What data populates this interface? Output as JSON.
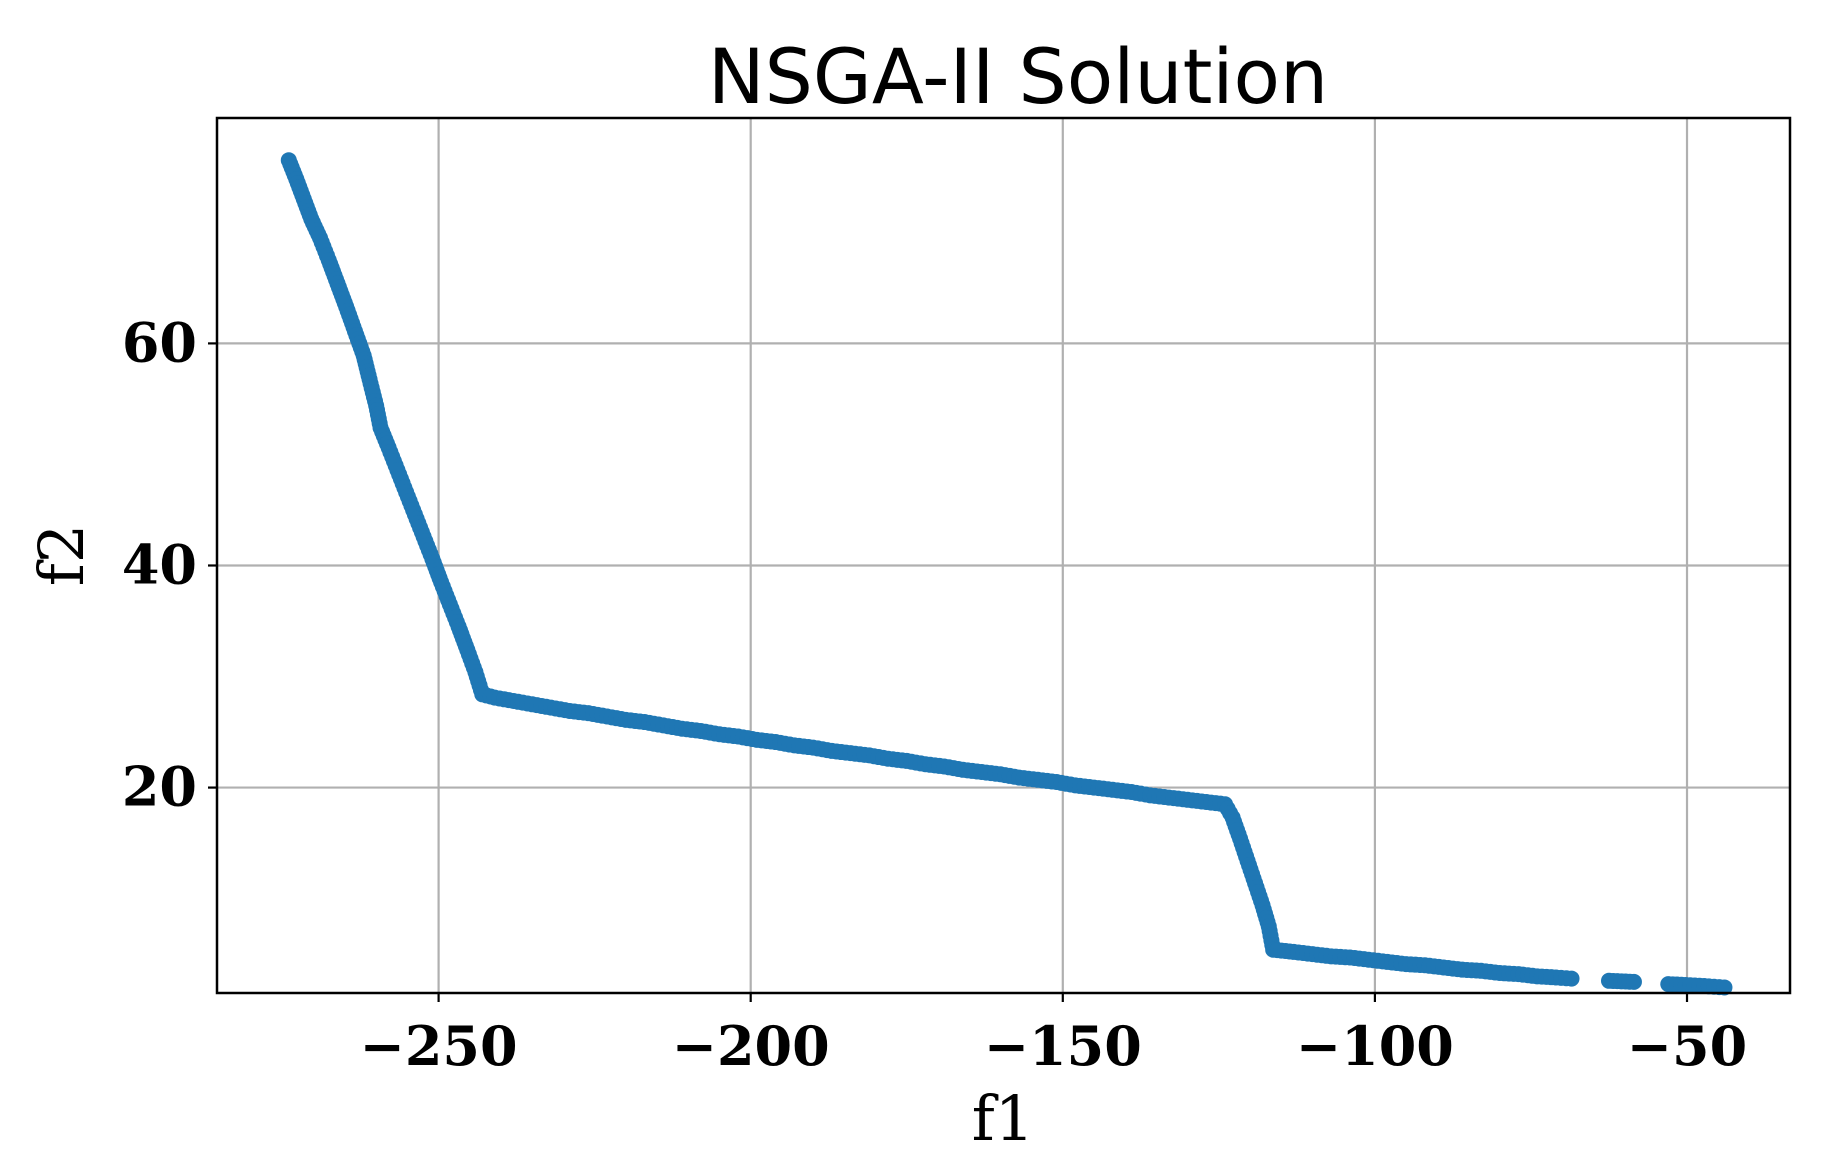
{
  "chart_data": {
    "type": "scatter",
    "title": "NSGA-II Solution",
    "xlabel": "f1",
    "ylabel": "f2",
    "xlim": [
      -285.5,
      -33.5
    ],
    "ylim": [
      1.5,
      80.3
    ],
    "xticks": [
      -250,
      -200,
      -150,
      -100,
      -50
    ],
    "xtick_labels": [
      "−250",
      "−200",
      "−150",
      "−100",
      "−50"
    ],
    "yticks": [
      20,
      40,
      60
    ],
    "ytick_labels": [
      "20",
      "40",
      "60"
    ],
    "grid": true,
    "legend": "none",
    "color": "#1f77b4",
    "series": [
      {
        "points": [
          [
            -274.0,
            76.5
          ],
          [
            -272.8,
            74.8
          ],
          [
            -271.6,
            73.0
          ],
          [
            -270.4,
            71.2
          ],
          [
            -269.0,
            69.5
          ],
          [
            -267.6,
            67.5
          ],
          [
            -266.2,
            65.4
          ],
          [
            -264.8,
            63.3
          ],
          [
            -263.4,
            61.1
          ],
          [
            -262.0,
            58.9
          ],
          [
            -260.9,
            56.4
          ],
          [
            -260.0,
            54.4
          ],
          [
            -259.3,
            52.4
          ],
          [
            -258.0,
            50.6
          ],
          [
            -256.6,
            48.6
          ],
          [
            -255.2,
            46.6
          ],
          [
            -253.8,
            44.6
          ],
          [
            -252.4,
            42.6
          ],
          [
            -251.0,
            40.6
          ],
          [
            -249.6,
            38.5
          ],
          [
            -248.2,
            36.5
          ],
          [
            -246.8,
            34.5
          ],
          [
            -245.4,
            32.4
          ],
          [
            -244.1,
            30.4
          ],
          [
            -243.0,
            28.4
          ],
          [
            -241.0,
            28.1
          ],
          [
            -238.0,
            27.8
          ],
          [
            -235.0,
            27.5
          ],
          [
            -232.0,
            27.2
          ],
          [
            -229.0,
            26.9
          ],
          [
            -226.0,
            26.7
          ],
          [
            -223.0,
            26.4
          ],
          [
            -220.0,
            26.1
          ],
          [
            -217.0,
            25.9
          ],
          [
            -214.0,
            25.6
          ],
          [
            -211.0,
            25.3
          ],
          [
            -208.0,
            25.1
          ],
          [
            -205.0,
            24.8
          ],
          [
            -202.0,
            24.6
          ],
          [
            -199.0,
            24.3
          ],
          [
            -196.0,
            24.1
          ],
          [
            -193.0,
            23.8
          ],
          [
            -190.0,
            23.6
          ],
          [
            -187.0,
            23.3
          ],
          [
            -184.0,
            23.1
          ],
          [
            -181.0,
            22.9
          ],
          [
            -178.0,
            22.6
          ],
          [
            -175.0,
            22.4
          ],
          [
            -172.0,
            22.1
          ],
          [
            -169.0,
            21.9
          ],
          [
            -166.0,
            21.6
          ],
          [
            -163.0,
            21.4
          ],
          [
            -160.0,
            21.2
          ],
          [
            -157.0,
            20.9
          ],
          [
            -154.0,
            20.7
          ],
          [
            -151.0,
            20.5
          ],
          [
            -148.0,
            20.2
          ],
          [
            -145.0,
            20.0
          ],
          [
            -142.0,
            19.8
          ],
          [
            -139.0,
            19.6
          ],
          [
            -136.0,
            19.3
          ],
          [
            -133.0,
            19.1
          ],
          [
            -130.0,
            18.9
          ],
          [
            -127.0,
            18.7
          ],
          [
            -124.0,
            18.5
          ],
          [
            -122.8,
            17.3
          ],
          [
            -121.6,
            15.4
          ],
          [
            -120.4,
            13.4
          ],
          [
            -119.2,
            11.4
          ],
          [
            -118.0,
            9.4
          ],
          [
            -117.0,
            7.5
          ],
          [
            -116.3,
            5.4
          ],
          [
            -113.0,
            5.2
          ],
          [
            -110.0,
            5.0
          ],
          [
            -107.0,
            4.8
          ],
          [
            -104.0,
            4.7
          ],
          [
            -101.0,
            4.5
          ],
          [
            -98.0,
            4.3
          ],
          [
            -95.0,
            4.1
          ],
          [
            -92.0,
            4.0
          ],
          [
            -89.0,
            3.8
          ],
          [
            -86.0,
            3.6
          ],
          [
            -83.0,
            3.5
          ],
          [
            -80.0,
            3.3
          ],
          [
            -77.0,
            3.2
          ],
          [
            -74.0,
            3.0
          ],
          [
            -71.0,
            2.9
          ],
          [
            -68.5,
            2.8
          ],
          [
            -62.5,
            2.6
          ],
          [
            -58.5,
            2.5
          ],
          [
            -53.0,
            2.3
          ],
          [
            -49.5,
            2.2
          ],
          [
            -46.5,
            2.1
          ],
          [
            -44.0,
            2.0
          ]
        ]
      }
    ]
  }
}
